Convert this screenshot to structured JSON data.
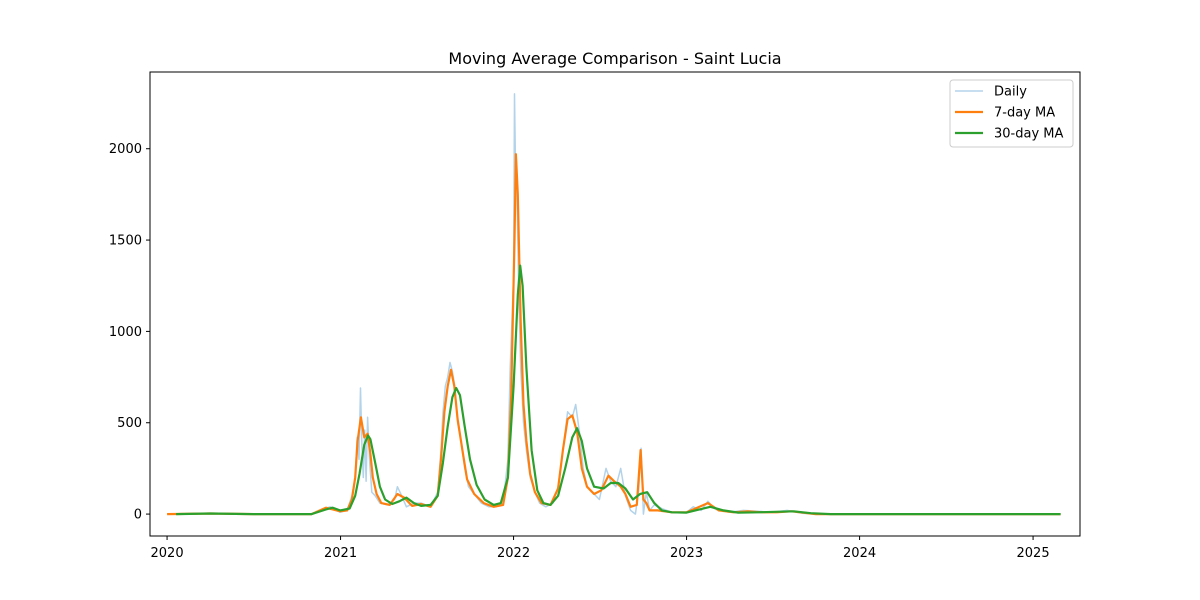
{
  "chart_data": {
    "type": "line",
    "title": "Moving Average Comparison - Saint Lucia",
    "xlabel": "",
    "ylabel": "",
    "x_ticks": [
      "2020",
      "2021",
      "2022",
      "2023",
      "2024",
      "2025"
    ],
    "y_ticks": [
      0,
      500,
      1000,
      1500,
      2000
    ],
    "xlim": [
      "2019-11-26",
      "2025-04-10"
    ],
    "ylim": [
      -120,
      2420
    ],
    "grid": false,
    "legend_position": "top-right",
    "series": [
      {
        "name": "Daily",
        "color": "#b3d3ea",
        "points": [
          [
            "2020-01-01",
            0
          ],
          [
            "2020-04-01",
            5
          ],
          [
            "2020-07-01",
            0
          ],
          [
            "2020-11-01",
            0
          ],
          [
            "2020-11-20",
            20
          ],
          [
            "2020-12-10",
            40
          ],
          [
            "2020-12-31",
            10
          ],
          [
            "2021-01-15",
            20
          ],
          [
            "2021-01-25",
            100
          ],
          [
            "2021-02-01",
            200
          ],
          [
            "2021-02-05",
            420
          ],
          [
            "2021-02-09",
            300
          ],
          [
            "2021-02-12",
            690
          ],
          [
            "2021-02-15",
            380
          ],
          [
            "2021-02-18",
            200
          ],
          [
            "2021-02-21",
            460
          ],
          [
            "2021-02-24",
            180
          ],
          [
            "2021-02-27",
            530
          ],
          [
            "2021-03-03",
            300
          ],
          [
            "2021-03-08",
            120
          ],
          [
            "2021-03-15",
            100
          ],
          [
            "2021-03-25",
            60
          ],
          [
            "2021-04-10",
            50
          ],
          [
            "2021-04-25",
            80
          ],
          [
            "2021-05-01",
            150
          ],
          [
            "2021-05-10",
            100
          ],
          [
            "2021-05-20",
            40
          ],
          [
            "2021-06-05",
            60
          ],
          [
            "2021-06-20",
            60
          ],
          [
            "2021-07-10",
            40
          ],
          [
            "2021-07-25",
            120
          ],
          [
            "2021-08-01",
            350
          ],
          [
            "2021-08-05",
            550
          ],
          [
            "2021-08-10",
            700
          ],
          [
            "2021-08-15",
            750
          ],
          [
            "2021-08-20",
            830
          ],
          [
            "2021-08-25",
            780
          ],
          [
            "2021-08-30",
            700
          ],
          [
            "2021-09-05",
            500
          ],
          [
            "2021-09-12",
            400
          ],
          [
            "2021-09-20",
            250
          ],
          [
            "2021-09-28",
            150
          ],
          [
            "2021-10-10",
            110
          ],
          [
            "2021-10-25",
            60
          ],
          [
            "2021-11-10",
            40
          ],
          [
            "2021-11-25",
            40
          ],
          [
            "2021-12-10",
            60
          ],
          [
            "2021-12-20",
            300
          ],
          [
            "2021-12-25",
            800
          ],
          [
            "2022-01-01",
            1300
          ],
          [
            "2022-01-03",
            2300
          ],
          [
            "2022-01-05",
            1900
          ],
          [
            "2022-01-08",
            1800
          ],
          [
            "2022-01-12",
            1200
          ],
          [
            "2022-01-16",
            800
          ],
          [
            "2022-01-22",
            500
          ],
          [
            "2022-01-28",
            350
          ],
          [
            "2022-02-05",
            200
          ],
          [
            "2022-02-15",
            120
          ],
          [
            "2022-02-25",
            60
          ],
          [
            "2022-03-10",
            40
          ],
          [
            "2022-03-25",
            60
          ],
          [
            "2022-04-05",
            150
          ],
          [
            "2022-04-15",
            350
          ],
          [
            "2022-04-25",
            560
          ],
          [
            "2022-05-05",
            530
          ],
          [
            "2022-05-12",
            600
          ],
          [
            "2022-05-20",
            450
          ],
          [
            "2022-05-28",
            250
          ],
          [
            "2022-06-05",
            150
          ],
          [
            "2022-06-20",
            110
          ],
          [
            "2022-07-01",
            80
          ],
          [
            "2022-07-15",
            250
          ],
          [
            "2022-07-25",
            180
          ],
          [
            "2022-08-05",
            150
          ],
          [
            "2022-08-15",
            250
          ],
          [
            "2022-08-25",
            100
          ],
          [
            "2022-09-05",
            20
          ],
          [
            "2022-09-15",
            0
          ],
          [
            "2022-09-22",
            130
          ],
          [
            "2022-09-27",
            360
          ],
          [
            "2022-10-02",
            0
          ],
          [
            "2022-10-08",
            120
          ],
          [
            "2022-10-15",
            20
          ],
          [
            "2022-10-25",
            50
          ],
          [
            "2022-11-10",
            30
          ],
          [
            "2022-12-01",
            10
          ],
          [
            "2023-01-01",
            10
          ],
          [
            "2023-01-15",
            40
          ],
          [
            "2023-02-01",
            20
          ],
          [
            "2023-02-15",
            70
          ],
          [
            "2023-03-01",
            30
          ],
          [
            "2023-04-01",
            10
          ],
          [
            "2023-05-01",
            20
          ],
          [
            "2023-06-01",
            15
          ],
          [
            "2023-07-01",
            10
          ],
          [
            "2023-08-01",
            20
          ],
          [
            "2023-09-01",
            5
          ],
          [
            "2023-10-01",
            0
          ],
          [
            "2024-06-01",
            0
          ],
          [
            "2025-02-28",
            0
          ]
        ]
      },
      {
        "name": "7-day MA",
        "color": "#ff7f0e",
        "points": [
          [
            "2020-01-01",
            0
          ],
          [
            "2020-04-01",
            3
          ],
          [
            "2020-07-01",
            0
          ],
          [
            "2020-11-01",
            0
          ],
          [
            "2020-12-01",
            35
          ],
          [
            "2020-12-31",
            15
          ],
          [
            "2021-01-15",
            20
          ],
          [
            "2021-01-25",
            80
          ],
          [
            "2021-02-01",
            200
          ],
          [
            "2021-02-06",
            400
          ],
          [
            "2021-02-13",
            530
          ],
          [
            "2021-02-20",
            420
          ],
          [
            "2021-02-27",
            440
          ],
          [
            "2021-03-05",
            330
          ],
          [
            "2021-03-10",
            200
          ],
          [
            "2021-03-18",
            110
          ],
          [
            "2021-03-28",
            60
          ],
          [
            "2021-04-15",
            50
          ],
          [
            "2021-05-01",
            110
          ],
          [
            "2021-05-15",
            90
          ],
          [
            "2021-06-01",
            45
          ],
          [
            "2021-06-20",
            55
          ],
          [
            "2021-07-10",
            40
          ],
          [
            "2021-07-25",
            100
          ],
          [
            "2021-08-01",
            300
          ],
          [
            "2021-08-08",
            560
          ],
          [
            "2021-08-15",
            700
          ],
          [
            "2021-08-22",
            790
          ],
          [
            "2021-08-29",
            700
          ],
          [
            "2021-09-05",
            520
          ],
          [
            "2021-09-15",
            350
          ],
          [
            "2021-09-25",
            190
          ],
          [
            "2021-10-10",
            110
          ],
          [
            "2021-10-30",
            60
          ],
          [
            "2021-11-20",
            40
          ],
          [
            "2021-12-10",
            50
          ],
          [
            "2021-12-20",
            200
          ],
          [
            "2021-12-27",
            650
          ],
          [
            "2022-01-03",
            1500
          ],
          [
            "2022-01-06",
            1970
          ],
          [
            "2022-01-10",
            1750
          ],
          [
            "2022-01-16",
            1050
          ],
          [
            "2022-01-22",
            600
          ],
          [
            "2022-01-28",
            400
          ],
          [
            "2022-02-05",
            220
          ],
          [
            "2022-02-15",
            120
          ],
          [
            "2022-03-01",
            60
          ],
          [
            "2022-03-20",
            50
          ],
          [
            "2022-04-05",
            140
          ],
          [
            "2022-04-15",
            350
          ],
          [
            "2022-04-25",
            520
          ],
          [
            "2022-05-05",
            540
          ],
          [
            "2022-05-15",
            450
          ],
          [
            "2022-05-25",
            250
          ],
          [
            "2022-06-05",
            150
          ],
          [
            "2022-06-20",
            110
          ],
          [
            "2022-07-05",
            130
          ],
          [
            "2022-07-20",
            210
          ],
          [
            "2022-08-01",
            180
          ],
          [
            "2022-08-15",
            150
          ],
          [
            "2022-08-25",
            110
          ],
          [
            "2022-09-05",
            40
          ],
          [
            "2022-09-18",
            50
          ],
          [
            "2022-09-26",
            350
          ],
          [
            "2022-10-02",
            80
          ],
          [
            "2022-10-08",
            60
          ],
          [
            "2022-10-15",
            20
          ],
          [
            "2022-11-01",
            20
          ],
          [
            "2022-12-01",
            10
          ],
          [
            "2023-01-01",
            10
          ],
          [
            "2023-02-15",
            60
          ],
          [
            "2023-03-10",
            20
          ],
          [
            "2023-04-10",
            10
          ],
          [
            "2023-05-10",
            15
          ],
          [
            "2023-06-10",
            10
          ],
          [
            "2023-07-10",
            10
          ],
          [
            "2023-08-10",
            15
          ],
          [
            "2023-10-01",
            0
          ],
          [
            "2025-02-28",
            0
          ]
        ]
      },
      {
        "name": "30-day MA",
        "color": "#2ca02c",
        "points": [
          [
            "2020-01-20",
            0
          ],
          [
            "2020-04-01",
            3
          ],
          [
            "2020-07-01",
            0
          ],
          [
            "2020-11-01",
            0
          ],
          [
            "2020-12-01",
            25
          ],
          [
            "2020-12-15",
            35
          ],
          [
            "2020-12-31",
            20
          ],
          [
            "2021-01-20",
            30
          ],
          [
            "2021-02-01",
            100
          ],
          [
            "2021-02-10",
            220
          ],
          [
            "2021-02-20",
            380
          ],
          [
            "2021-02-28",
            430
          ],
          [
            "2021-03-05",
            410
          ],
          [
            "2021-03-15",
            280
          ],
          [
            "2021-03-25",
            150
          ],
          [
            "2021-04-05",
            80
          ],
          [
            "2021-04-20",
            55
          ],
          [
            "2021-05-05",
            70
          ],
          [
            "2021-05-20",
            90
          ],
          [
            "2021-06-05",
            60
          ],
          [
            "2021-06-20",
            45
          ],
          [
            "2021-07-10",
            50
          ],
          [
            "2021-07-25",
            100
          ],
          [
            "2021-08-05",
            280
          ],
          [
            "2021-08-15",
            480
          ],
          [
            "2021-08-25",
            640
          ],
          [
            "2021-09-02",
            690
          ],
          [
            "2021-09-10",
            650
          ],
          [
            "2021-09-20",
            480
          ],
          [
            "2021-10-01",
            300
          ],
          [
            "2021-10-15",
            160
          ],
          [
            "2021-11-01",
            80
          ],
          [
            "2021-11-20",
            50
          ],
          [
            "2021-12-05",
            60
          ],
          [
            "2021-12-20",
            200
          ],
          [
            "2022-01-01",
            700
          ],
          [
            "2022-01-10",
            1200
          ],
          [
            "2022-01-15",
            1360
          ],
          [
            "2022-01-20",
            1250
          ],
          [
            "2022-01-28",
            800
          ],
          [
            "2022-02-08",
            350
          ],
          [
            "2022-02-20",
            130
          ],
          [
            "2022-03-05",
            60
          ],
          [
            "2022-03-20",
            50
          ],
          [
            "2022-04-05",
            100
          ],
          [
            "2022-04-20",
            250
          ],
          [
            "2022-05-05",
            420
          ],
          [
            "2022-05-15",
            470
          ],
          [
            "2022-05-25",
            400
          ],
          [
            "2022-06-05",
            250
          ],
          [
            "2022-06-20",
            150
          ],
          [
            "2022-07-10",
            140
          ],
          [
            "2022-07-25",
            170
          ],
          [
            "2022-08-10",
            170
          ],
          [
            "2022-08-25",
            140
          ],
          [
            "2022-09-10",
            80
          ],
          [
            "2022-09-25",
            110
          ],
          [
            "2022-10-10",
            120
          ],
          [
            "2022-10-25",
            60
          ],
          [
            "2022-11-10",
            20
          ],
          [
            "2022-12-01",
            10
          ],
          [
            "2023-01-01",
            8
          ],
          [
            "2023-02-20",
            40
          ],
          [
            "2023-03-20",
            20
          ],
          [
            "2023-04-20",
            8
          ],
          [
            "2023-06-01",
            10
          ],
          [
            "2023-08-15",
            15
          ],
          [
            "2023-09-20",
            5
          ],
          [
            "2023-11-01",
            0
          ],
          [
            "2025-02-28",
            0
          ]
        ]
      }
    ]
  }
}
